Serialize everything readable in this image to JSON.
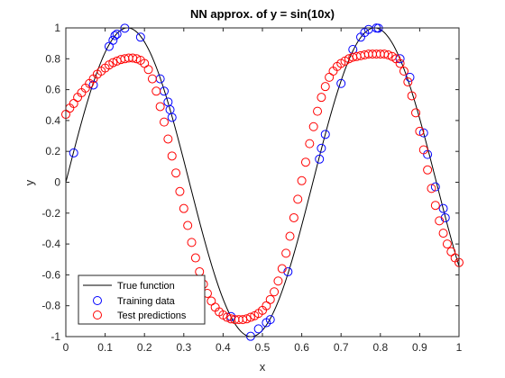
{
  "chart_data": {
    "type": "scatter",
    "title": "NN approx. of y = sin(10x)",
    "xlabel": "x",
    "ylabel": "y",
    "xlim": [
      0,
      1
    ],
    "ylim": [
      -1,
      1
    ],
    "xticks": [
      0,
      0.1,
      0.2,
      0.3,
      0.4,
      0.5,
      0.6,
      0.7,
      0.8,
      0.9,
      1
    ],
    "xtick_labels": [
      "0",
      "0.1",
      "0.2",
      "0.3",
      "0.4",
      "0.5",
      "0.6",
      "0.7",
      "0.8",
      "0.9",
      "1"
    ],
    "yticks": [
      -1,
      -0.8,
      -0.6,
      -0.4,
      -0.2,
      0,
      0.2,
      0.4,
      0.6,
      0.8,
      1
    ],
    "ytick_labels": [
      "-1",
      "-0.8",
      "-0.6",
      "-0.4",
      "-0.2",
      "0",
      "0.2",
      "0.4",
      "0.6",
      "0.8",
      "1"
    ],
    "grid": false,
    "legend_position": "bottom-left",
    "colors": {
      "true_function": "#000000",
      "training": "#0000ff",
      "test": "#ff0000"
    },
    "series": [
      {
        "name": "True function",
        "kind": "line",
        "function": "sin(10x)",
        "x_range": [
          0,
          1
        ]
      },
      {
        "name": "Training data",
        "kind": "markers",
        "marker": "circle",
        "x": [
          0.02,
          0.07,
          0.11,
          0.12,
          0.125,
          0.13,
          0.15,
          0.19,
          0.24,
          0.25,
          0.26,
          0.265,
          0.27,
          0.42,
          0.47,
          0.49,
          0.51,
          0.52,
          0.565,
          0.645,
          0.65,
          0.66,
          0.7,
          0.73,
          0.75,
          0.76,
          0.77,
          0.79,
          0.795,
          0.85,
          0.875,
          0.91,
          0.92,
          0.94,
          0.96,
          0.965
        ],
        "y": [
          0.19,
          0.63,
          0.88,
          0.92,
          0.95,
          0.96,
          0.998,
          0.94,
          0.67,
          0.59,
          0.52,
          0.47,
          0.42,
          -0.87,
          -0.998,
          -0.95,
          -0.91,
          -0.89,
          -0.58,
          0.15,
          0.22,
          0.31,
          0.64,
          0.86,
          0.94,
          0.97,
          0.99,
          0.999,
          0.998,
          0.8,
          0.68,
          0.32,
          0.18,
          -0.03,
          -0.17,
          -0.23
        ]
      },
      {
        "name": "Test predictions",
        "kind": "markers",
        "marker": "circle",
        "x": [
          0.0,
          0.01,
          0.02,
          0.03,
          0.04,
          0.05,
          0.06,
          0.07,
          0.08,
          0.09,
          0.1,
          0.11,
          0.12,
          0.13,
          0.14,
          0.15,
          0.16,
          0.17,
          0.18,
          0.19,
          0.2,
          0.21,
          0.22,
          0.23,
          0.24,
          0.25,
          0.26,
          0.27,
          0.28,
          0.29,
          0.3,
          0.31,
          0.32,
          0.33,
          0.34,
          0.35,
          0.36,
          0.37,
          0.38,
          0.39,
          0.4,
          0.41,
          0.42,
          0.43,
          0.44,
          0.45,
          0.46,
          0.47,
          0.48,
          0.49,
          0.5,
          0.51,
          0.52,
          0.53,
          0.54,
          0.55,
          0.56,
          0.57,
          0.58,
          0.59,
          0.6,
          0.61,
          0.62,
          0.63,
          0.64,
          0.65,
          0.66,
          0.67,
          0.68,
          0.69,
          0.7,
          0.71,
          0.72,
          0.73,
          0.74,
          0.75,
          0.76,
          0.77,
          0.78,
          0.79,
          0.8,
          0.81,
          0.82,
          0.83,
          0.84,
          0.85,
          0.86,
          0.87,
          0.88,
          0.89,
          0.9,
          0.91,
          0.92,
          0.93,
          0.94,
          0.95,
          0.96,
          0.97,
          0.98,
          0.99,
          1.0
        ],
        "y": [
          0.44,
          0.48,
          0.51,
          0.55,
          0.58,
          0.61,
          0.64,
          0.67,
          0.7,
          0.72,
          0.74,
          0.76,
          0.775,
          0.785,
          0.795,
          0.8,
          0.805,
          0.805,
          0.8,
          0.79,
          0.77,
          0.73,
          0.67,
          0.59,
          0.49,
          0.39,
          0.28,
          0.17,
          0.06,
          -0.06,
          -0.17,
          -0.28,
          -0.39,
          -0.49,
          -0.58,
          -0.66,
          -0.72,
          -0.77,
          -0.81,
          -0.84,
          -0.86,
          -0.875,
          -0.885,
          -0.89,
          -0.89,
          -0.89,
          -0.885,
          -0.875,
          -0.865,
          -0.85,
          -0.83,
          -0.8,
          -0.76,
          -0.71,
          -0.64,
          -0.56,
          -0.46,
          -0.35,
          -0.23,
          -0.11,
          0.01,
          0.13,
          0.25,
          0.36,
          0.46,
          0.55,
          0.62,
          0.68,
          0.72,
          0.75,
          0.77,
          0.785,
          0.8,
          0.81,
          0.815,
          0.82,
          0.825,
          0.83,
          0.83,
          0.83,
          0.83,
          0.83,
          0.825,
          0.815,
          0.8,
          0.77,
          0.72,
          0.65,
          0.56,
          0.45,
          0.33,
          0.21,
          0.08,
          -0.04,
          -0.15,
          -0.25,
          -0.33,
          -0.4,
          -0.45,
          -0.49,
          -0.52
        ]
      }
    ]
  }
}
